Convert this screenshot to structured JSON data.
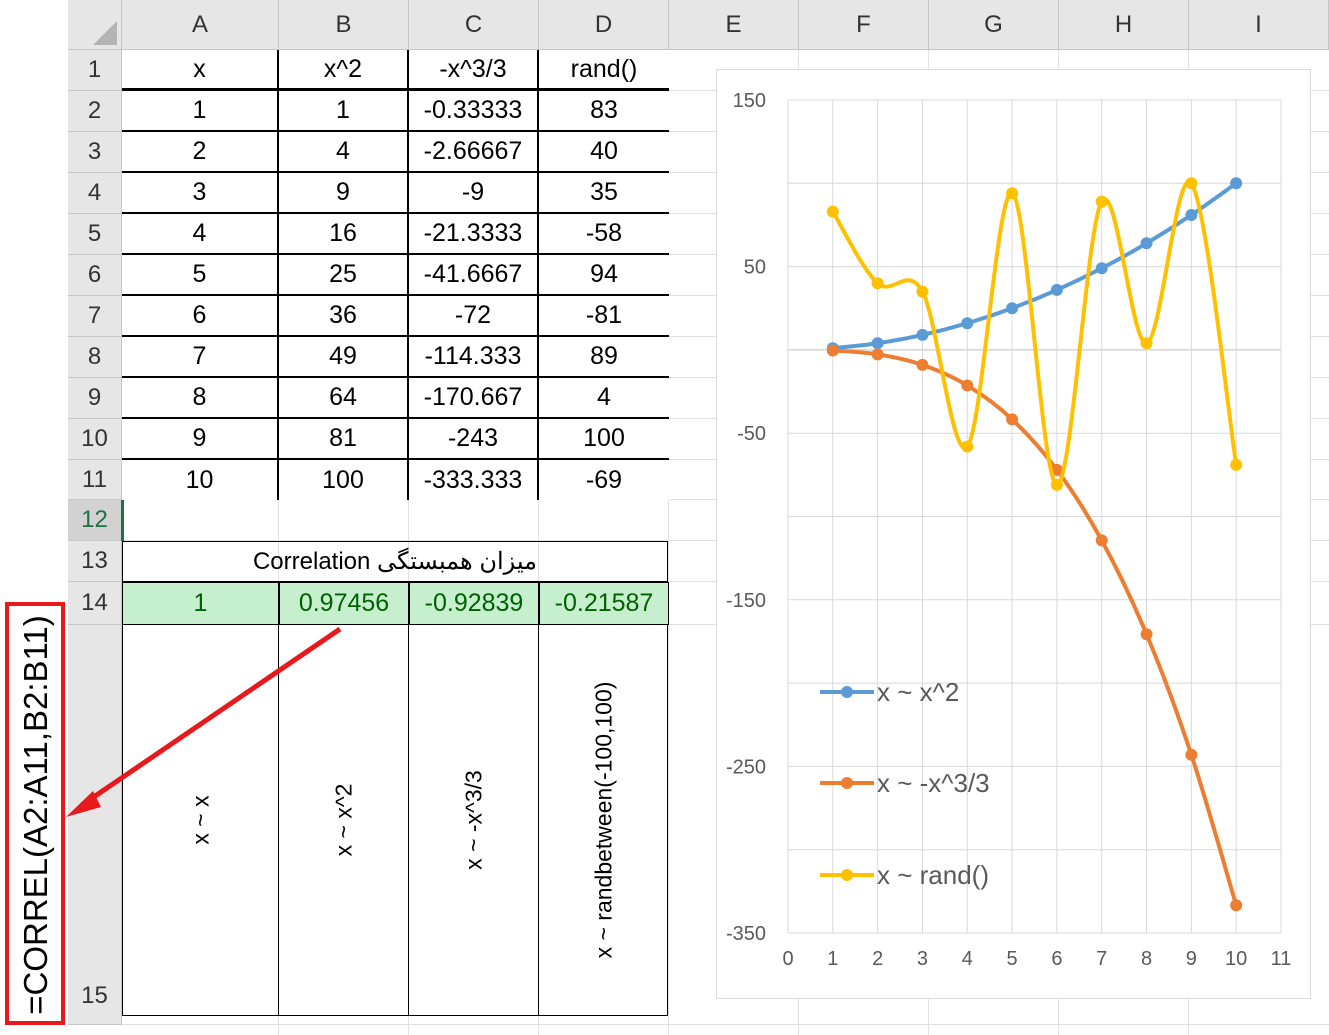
{
  "columns": [
    "A",
    "B",
    "C",
    "D",
    "E",
    "F",
    "G",
    "H",
    "I"
  ],
  "rows": [
    "1",
    "2",
    "3",
    "4",
    "5",
    "6",
    "7",
    "8",
    "9",
    "10",
    "11",
    "12",
    "13",
    "14",
    "15"
  ],
  "table": {
    "headers": [
      "x",
      "x^2",
      "-x^3/3",
      "rand()"
    ],
    "data": [
      [
        "1",
        "1",
        "-0.33333",
        "83"
      ],
      [
        "2",
        "4",
        "-2.66667",
        "40"
      ],
      [
        "3",
        "9",
        "-9",
        "35"
      ],
      [
        "4",
        "16",
        "-21.3333",
        "-58"
      ],
      [
        "5",
        "25",
        "-41.6667",
        "94"
      ],
      [
        "6",
        "36",
        "-72",
        "-81"
      ],
      [
        "7",
        "49",
        "-114.333",
        "89"
      ],
      [
        "8",
        "64",
        "-170.667",
        "4"
      ],
      [
        "9",
        "81",
        "-243",
        "100"
      ],
      [
        "10",
        "100",
        "-333.333",
        "-69"
      ]
    ]
  },
  "correlation": {
    "title": "میزان همبستگی Correlation",
    "values": [
      "1",
      "0.97456",
      "-0.92839",
      "-0.21587"
    ],
    "labels": [
      "x ~ x",
      "x ~ x^2",
      "x ~ -x^3/3",
      "x ~ randbetween(-100,100)"
    ]
  },
  "formula": "=CORREL(A2:A11,B2:B11)",
  "colors": {
    "highlight_fill": "#c6efce",
    "highlight_text": "#006100",
    "arrow": "#e8191c",
    "series": [
      "#5b9bd5",
      "#ed7d31",
      "#ffc000"
    ]
  },
  "chart_data": {
    "type": "line",
    "x": [
      1,
      2,
      3,
      4,
      5,
      6,
      7,
      8,
      9,
      10
    ],
    "series": [
      {
        "name": "x ~ x^2",
        "values": [
          1,
          4,
          9,
          16,
          25,
          36,
          49,
          64,
          81,
          100
        ]
      },
      {
        "name": "x ~ -x^3/3",
        "values": [
          -0.33333,
          -2.66667,
          -9,
          -21.3333,
          -41.6667,
          -72,
          -114.333,
          -170.667,
          -243,
          -333.333
        ]
      },
      {
        "name": "x ~ rand()",
        "values": [
          83,
          40,
          35,
          -58,
          94,
          -81,
          89,
          4,
          100,
          -69
        ]
      }
    ],
    "xlim": [
      0,
      11
    ],
    "ylim": [
      -350,
      150
    ],
    "x_ticks": [
      "0",
      "1",
      "2",
      "3",
      "4",
      "5",
      "6",
      "7",
      "8",
      "9",
      "10",
      "11"
    ],
    "y_ticks": [
      "150",
      "50",
      "-50",
      "-150",
      "-250",
      "-350"
    ],
    "smoothed": true,
    "markers": true,
    "grid": true,
    "legend": "left-inside"
  }
}
